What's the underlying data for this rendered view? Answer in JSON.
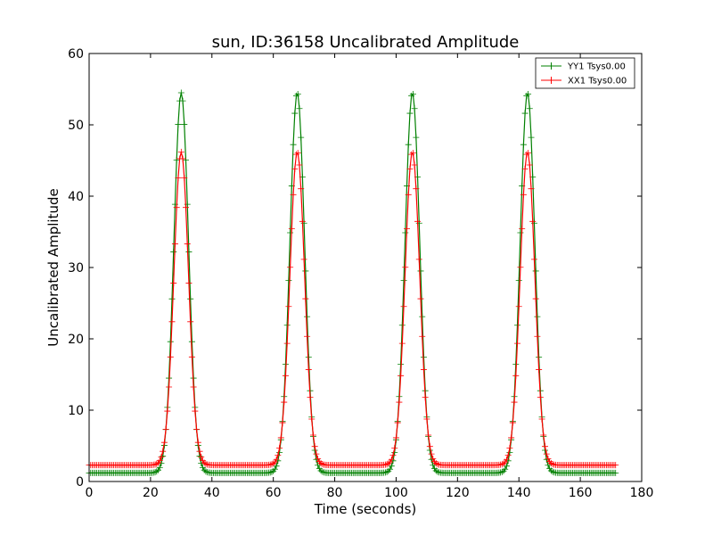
{
  "chart_data": {
    "type": "line",
    "title": "sun, ID:36158 Uncalibrated Amplitude",
    "xlabel": "Time (seconds)",
    "ylabel": "Uncalibrated Amplitude",
    "xlim": [
      0,
      180
    ],
    "ylim": [
      0,
      60
    ],
    "xticks": [
      0,
      20,
      40,
      60,
      80,
      100,
      120,
      140,
      160,
      180
    ],
    "yticks": [
      0,
      10,
      20,
      30,
      40,
      50,
      60
    ],
    "grid": false,
    "legend": "top-right",
    "marker": "+",
    "sample_interval": 0.5,
    "x_start": 0,
    "x_end": 171.5,
    "series": [
      {
        "name": "YY1 Tsys0.00",
        "color": "#008000",
        "baseline": 1.2,
        "peaks": [
          {
            "center": 30,
            "height": 54.5,
            "width": 2.4
          },
          {
            "center": 67.8,
            "height": 54.5,
            "width": 2.4
          },
          {
            "center": 105.3,
            "height": 54.5,
            "width": 2.4
          },
          {
            "center": 142.8,
            "height": 54.5,
            "width": 2.4
          }
        ]
      },
      {
        "name": "XX1 Tsys0.00",
        "color": "#ff0000",
        "baseline": 2.3,
        "peaks": [
          {
            "center": 30,
            "height": 46.2,
            "width": 2.4
          },
          {
            "center": 67.8,
            "height": 46.2,
            "width": 2.4
          },
          {
            "center": 105.3,
            "height": 46.2,
            "width": 2.4
          },
          {
            "center": 142.8,
            "height": 46.2,
            "width": 2.4
          }
        ]
      }
    ]
  }
}
